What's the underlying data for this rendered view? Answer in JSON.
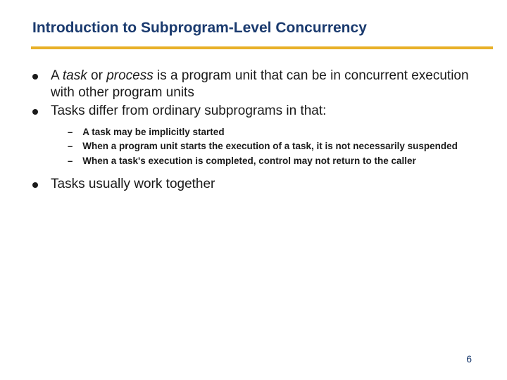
{
  "colors": {
    "title_color": "#1a3a6e",
    "underline_color": "#e8b028",
    "text_color": "#1a1a1a",
    "page_number_color": "#1a3a6e",
    "background_color": "#ffffff"
  },
  "typography": {
    "title_fontsize": 21,
    "title_weight": "bold",
    "bullet_fontsize": 19,
    "sub_fontsize": 13.5,
    "sub_weight": "bold",
    "page_number_fontsize": 14,
    "font_family": "Arial"
  },
  "title": "Introduction to Subprogram-Level Concurrency",
  "bullets": {
    "b1_prefix": "A ",
    "b1_italic1": "task",
    "b1_mid": " or ",
    "b1_italic2": "process",
    "b1_suffix": " is a program unit that can be in concurrent execution with other program units",
    "b2": "Tasks differ from ordinary subprograms in that:",
    "b3": "Tasks usually work together"
  },
  "sub_bullets": {
    "s1": "A task may be implicitly started",
    "s2": "When a program unit starts the execution of a task, it is not necessarily suspended",
    "s3": "When a task's execution is completed, control may not return to the caller"
  },
  "page_number": "6"
}
